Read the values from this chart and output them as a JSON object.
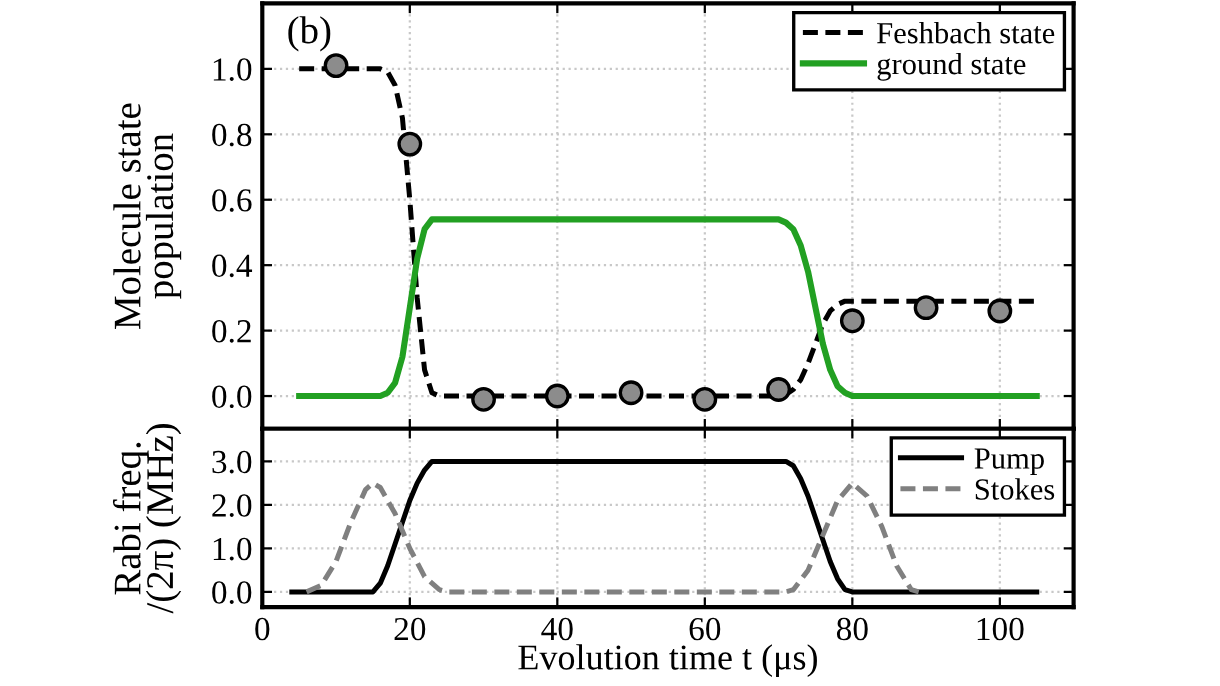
{
  "chart_data": [
    {
      "type": "line",
      "ylabel": "Molecule state\npopulation",
      "annotations": [
        "(b)"
      ],
      "xlim": [
        0,
        110
      ],
      "xticks": [
        0,
        20,
        40,
        60,
        80,
        100
      ],
      "ylim": [
        -0.1,
        1.2
      ],
      "yticks": [
        {
          "value": 0,
          "label": "0.0"
        },
        {
          "value": 0.2,
          "label": "0.2"
        },
        {
          "value": 0.4,
          "label": "0.4"
        },
        {
          "value": 0.6,
          "label": "0.6"
        },
        {
          "value": 0.8,
          "label": "0.8"
        },
        {
          "value": 1,
          "label": "1.0"
        }
      ],
      "grid": true,
      "legend": "top right",
      "tick_labels": "y",
      "series": [
        {
          "name": "Feshbach state",
          "color": "#000000",
          "line_style": "dashed",
          "x": [
            5,
            16,
            17,
            18,
            19,
            20,
            21,
            22,
            23,
            24,
            70,
            71,
            72,
            73,
            74,
            75,
            76,
            77,
            78,
            79,
            105
          ],
          "values": [
            1.0,
            1.0,
            0.99,
            0.95,
            0.85,
            0.6,
            0.3,
            0.08,
            0.01,
            0.0,
            0.0,
            0.005,
            0.02,
            0.05,
            0.1,
            0.16,
            0.22,
            0.26,
            0.28,
            0.29,
            0.29
          ]
        },
        {
          "name": "ground state",
          "color": "#22a022",
          "line_style": "solid",
          "x": [
            5,
            16,
            17,
            18,
            19,
            20,
            21,
            22,
            23,
            70,
            71,
            72,
            73,
            74,
            75,
            76,
            77,
            78,
            79,
            80,
            105
          ],
          "values": [
            0,
            0,
            0.01,
            0.04,
            0.12,
            0.27,
            0.42,
            0.51,
            0.54,
            0.54,
            0.53,
            0.51,
            0.46,
            0.38,
            0.27,
            0.16,
            0.08,
            0.03,
            0.01,
            0,
            0
          ]
        },
        {
          "type": "scatter",
          "color": "#8c8c8c",
          "marker": "circle",
          "x": [
            10,
            20,
            30,
            40,
            50,
            60,
            70,
            80,
            90,
            100
          ],
          "values": [
            1.01,
            0.77,
            -0.01,
            0.0,
            0.01,
            -0.01,
            0.02,
            0.23,
            0.27,
            0.26
          ]
        }
      ]
    },
    {
      "type": "line",
      "xlabel": "Evolution time t (μs)",
      "ylabel": "Rabi freq.\n/(2π) (MHz)",
      "xlim": [
        0,
        110
      ],
      "xticks": [
        0,
        20,
        40,
        60,
        80,
        100
      ],
      "ylim": [
        -0.35,
        3.75
      ],
      "yticks": [
        {
          "value": 0,
          "label": "0.0"
        },
        {
          "value": 1,
          "label": "1.0"
        },
        {
          "value": 2,
          "label": "2.0"
        },
        {
          "value": 3,
          "label": "3.0"
        }
      ],
      "grid": true,
      "legend": "top right",
      "series": [
        {
          "name": "Pump",
          "color": "#000000",
          "line_style": "solid",
          "x": [
            4,
            15,
            16,
            17,
            18,
            19,
            20,
            21,
            22,
            23,
            71,
            72,
            73,
            74,
            75,
            76,
            77,
            78,
            79,
            80,
            105
          ],
          "values": [
            0,
            0,
            0.2,
            0.6,
            1.1,
            1.6,
            2.1,
            2.5,
            2.8,
            3.0,
            3.0,
            2.9,
            2.6,
            2.2,
            1.7,
            1.2,
            0.7,
            0.3,
            0.05,
            0,
            0
          ]
        },
        {
          "name": "Stokes",
          "color": "#808080",
          "line_style": "dashed",
          "x": [
            6,
            8,
            10,
            12,
            14,
            15,
            16,
            18,
            20,
            22,
            24,
            25,
            71,
            72,
            74,
            76,
            78,
            80,
            82,
            84,
            86,
            88,
            89
          ],
          "values": [
            0,
            0.15,
            0.7,
            1.6,
            2.35,
            2.5,
            2.4,
            1.8,
            1.0,
            0.35,
            0.05,
            0,
            0,
            0.05,
            0.5,
            1.3,
            2.1,
            2.5,
            2.2,
            1.5,
            0.6,
            0.05,
            0
          ]
        }
      ]
    }
  ]
}
